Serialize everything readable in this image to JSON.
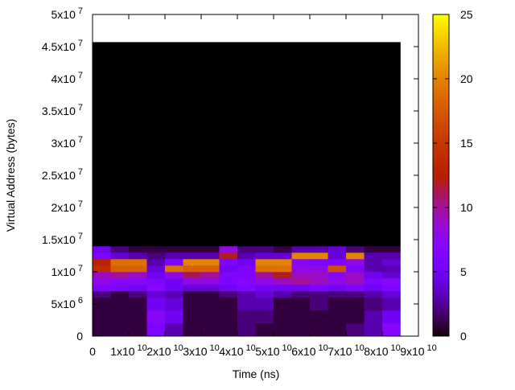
{
  "chart_data": {
    "type": "heatmap",
    "xlabel": "Time (ns)",
    "ylabel": "Virtual Address (bytes)",
    "xlim": [
      0,
      90000000000
    ],
    "ylim": [
      0,
      50000000
    ],
    "zlim": [
      0,
      25
    ],
    "xticks": [
      0,
      {
        "value": 10000000000,
        "label": "1x10",
        "exponent": "10"
      },
      {
        "value": 20000000000,
        "label": "2x10",
        "exponent": "10"
      },
      {
        "value": 30000000000,
        "label": "3x10",
        "exponent": "10"
      },
      {
        "value": 40000000000,
        "label": "4x10",
        "exponent": "10"
      },
      {
        "value": 50000000000,
        "label": "5x10",
        "exponent": "10"
      },
      {
        "value": 60000000000,
        "label": "6x10",
        "exponent": "10"
      },
      {
        "value": 70000000000,
        "label": "7x10",
        "exponent": "10"
      },
      {
        "value": 80000000000,
        "label": "8x10",
        "exponent": "10"
      },
      {
        "value": 90000000000,
        "label": "9x10",
        "exponent": "10"
      }
    ],
    "yticks": [
      0,
      {
        "value": 5000000,
        "label": "5x10",
        "exponent": "6"
      },
      {
        "value": 10000000,
        "label": "1x10",
        "exponent": "7"
      },
      {
        "value": 15000000,
        "label": "1.5x10",
        "exponent": "7"
      },
      {
        "value": 20000000,
        "label": "2x10",
        "exponent": "7"
      },
      {
        "value": 25000000,
        "label": "2.5x10",
        "exponent": "7"
      },
      {
        "value": 30000000,
        "label": "3x10",
        "exponent": "7"
      },
      {
        "value": 35000000,
        "label": "3.5x10",
        "exponent": "7"
      },
      {
        "value": 40000000,
        "label": "4x10",
        "exponent": "7"
      },
      {
        "value": 45000000,
        "label": "4.5x10",
        "exponent": "7"
      },
      {
        "value": 50000000,
        "label": "5x10",
        "exponent": "7"
      }
    ],
    "zticks": [
      0,
      5,
      10,
      15,
      20,
      25
    ],
    "xbins": [
      0,
      5000000000,
      10000000000,
      15000000000,
      20000000000,
      25000000000,
      30000000000,
      35000000000,
      40000000000,
      45000000000,
      50000000000,
      55000000000,
      60000000000,
      65000000000,
      70000000000,
      75000000000,
      80000000000,
      85000000000
    ],
    "ybins": [
      0,
      2000000,
      4000000,
      6000000,
      7000000,
      8000000,
      9000000,
      10000000,
      11000000,
      12000000,
      13000000,
      14000000,
      45700000
    ],
    "z": [
      [
        1,
        1,
        1,
        6,
        3,
        1,
        1,
        1,
        2,
        1,
        1,
        1,
        1,
        1,
        2,
        3,
        7
      ],
      [
        1,
        1,
        1,
        7,
        5,
        1,
        1,
        1,
        2,
        2,
        1,
        1,
        1,
        1,
        1,
        3,
        5
      ],
      [
        1,
        1,
        1,
        5,
        4,
        1,
        1,
        1,
        3,
        3,
        1,
        1,
        2,
        1,
        1,
        2,
        3
      ],
      [
        2,
        1,
        2,
        4,
        3,
        1,
        1,
        2,
        3,
        4,
        3,
        2,
        2,
        2,
        2,
        3,
        4
      ],
      [
        6,
        6,
        5,
        7,
        5,
        4,
        4,
        5,
        6,
        5,
        5,
        5,
        6,
        5,
        6,
        5,
        6
      ],
      [
        8,
        7,
        7,
        6,
        5,
        8,
        8,
        6,
        7,
        8,
        9,
        10,
        9,
        8,
        9,
        6,
        7
      ],
      [
        9,
        10,
        9,
        5,
        8,
        11,
        10,
        6,
        6,
        10,
        12,
        9,
        9,
        7,
        9,
        5,
        4
      ],
      [
        14,
        18,
        18,
        4,
        19,
        18,
        18,
        5,
        6,
        19,
        19,
        8,
        8,
        17,
        6,
        3,
        3
      ],
      [
        13,
        19,
        19,
        3,
        6,
        20,
        20,
        6,
        5,
        20,
        20,
        7,
        6,
        6,
        8,
        3,
        4
      ],
      [
        6,
        4,
        3,
        2,
        3,
        3,
        3,
        12,
        3,
        4,
        4,
        20,
        20,
        4,
        20,
        3,
        3
      ],
      [
        5,
        2,
        1,
        1,
        1,
        1,
        1,
        8,
        2,
        2,
        1,
        3,
        3,
        4,
        2,
        1,
        1
      ],
      [
        0,
        0,
        0,
        0,
        0,
        0,
        0,
        0,
        0,
        0,
        0,
        0,
        0,
        0,
        0,
        0,
        0
      ]
    ]
  }
}
